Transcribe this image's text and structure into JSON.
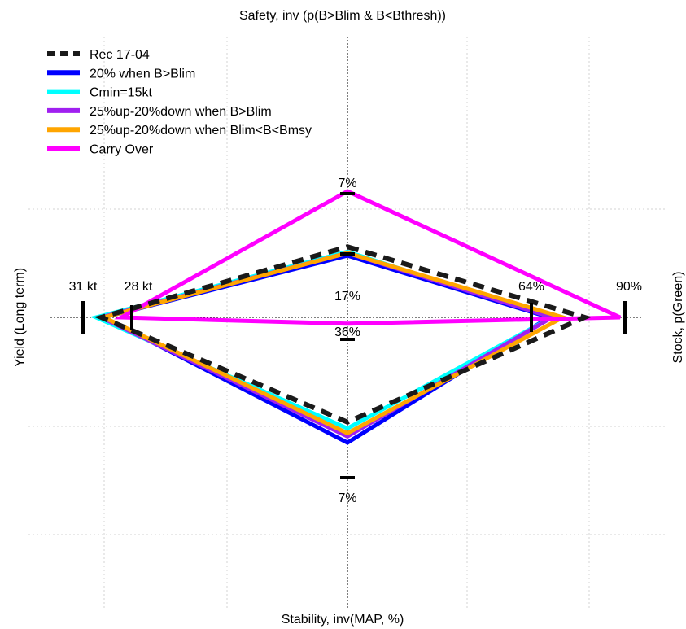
{
  "chart_data": {
    "type": "radar",
    "axes": {
      "top": {
        "title": "Safety, inv (p(B>Blim & B<Bthresh))",
        "outer_tick": "7%",
        "inner_tick": "17%"
      },
      "right": {
        "title": "Stock, p(Green)",
        "outer_tick": "90%",
        "inner_tick": "64%"
      },
      "bottom": {
        "title": "Stability, inv(MAP, %)",
        "outer_tick": "7%",
        "inner_tick": "36%"
      },
      "left": {
        "title": "Yield (Long term)",
        "outer_tick": "31 kt",
        "inner_tick": "28 kt"
      }
    },
    "legend": {
      "position": "top-left"
    },
    "series": [
      {
        "name": "Rec 17-04",
        "color": "#1a1a1a",
        "dashed": true,
        "values": {
          "top": 0.56,
          "right": 0.87,
          "bottom": 0.66,
          "left": 0.97
        }
      },
      {
        "name": "20% when B>Blim",
        "color": "#0000ff",
        "dashed": false,
        "values": {
          "top": 0.49,
          "right": 0.74,
          "bottom": 0.79,
          "left": 0.96
        }
      },
      {
        "name": "Cmin=15kt",
        "color": "#00ffff",
        "dashed": false,
        "values": {
          "top": 0.52,
          "right": 0.75,
          "bottom": 0.7,
          "left": 0.99
        }
      },
      {
        "name": "25%up-20%down when B>Blim",
        "color": "#a020f0",
        "dashed": false,
        "values": {
          "top": 0.51,
          "right": 0.75,
          "bottom": 0.75,
          "left": 0.97
        }
      },
      {
        "name": "25%up-20%down when Blim<B<Bmsy",
        "color": "#ffa500",
        "dashed": false,
        "values": {
          "top": 0.51,
          "right": 0.79,
          "bottom": 0.73,
          "left": 0.96
        }
      },
      {
        "name": "Carry Over",
        "color": "#ff00ff",
        "dashed": false,
        "values": {
          "top": 1.0,
          "right": 1.0,
          "bottom": 0.04,
          "left": 0.89
        }
      }
    ]
  }
}
